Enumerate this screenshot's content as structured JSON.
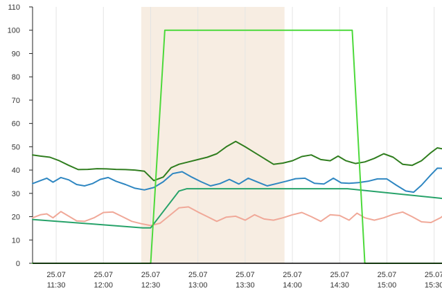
{
  "chart_data": {
    "type": "line",
    "title": "",
    "xlabel": "",
    "ylabel": "",
    "ylim": [
      0,
      110
    ],
    "yticks": [
      0,
      10,
      20,
      30,
      40,
      50,
      60,
      70,
      80,
      90,
      100,
      110
    ],
    "xlim": [
      "11:15",
      "15:35"
    ],
    "xticks": [
      {
        "time": "11:30",
        "date": "25.07"
      },
      {
        "time": "12:00",
        "date": "25.07"
      },
      {
        "time": "12:30",
        "date": "25.07"
      },
      {
        "time": "13:00",
        "date": "25.07"
      },
      {
        "time": "13:30",
        "date": "25.07"
      },
      {
        "time": "14:00",
        "date": "25.07"
      },
      {
        "time": "14:30",
        "date": "25.07"
      },
      {
        "time": "15:00",
        "date": "25.07"
      },
      {
        "time": "15:30",
        "date": "25.07"
      }
    ],
    "grid": "vertical",
    "highlight_band": {
      "start": "12:24",
      "end": "13:55",
      "color": "#f7ede2"
    },
    "series": [
      {
        "color": "#2f7d1e",
        "points": [
          [
            "11:15",
            46.5
          ],
          [
            "11:20",
            46
          ],
          [
            "11:26",
            45.5
          ],
          [
            "11:32",
            44
          ],
          [
            "11:38",
            42
          ],
          [
            "11:44",
            40.2
          ],
          [
            "11:50",
            40.3
          ],
          [
            "11:56",
            40.6
          ],
          [
            "12:02",
            40.5
          ],
          [
            "12:08",
            40.3
          ],
          [
            "12:14",
            40.2
          ],
          [
            "12:20",
            40
          ],
          [
            "12:26",
            39.5
          ],
          [
            "12:32",
            35.5
          ],
          [
            "12:38",
            37
          ],
          [
            "12:43",
            41
          ],
          [
            "12:48",
            42.5
          ],
          [
            "12:54",
            43.5
          ],
          [
            "13:00",
            44.5
          ],
          [
            "13:06",
            45.5
          ],
          [
            "13:12",
            47
          ],
          [
            "13:18",
            50
          ],
          [
            "13:24",
            52.3
          ],
          [
            "13:30",
            50
          ],
          [
            "13:36",
            47.5
          ],
          [
            "13:42",
            45
          ],
          [
            "13:48",
            42.5
          ],
          [
            "13:54",
            43
          ],
          [
            "14:00",
            44
          ],
          [
            "14:06",
            45.8
          ],
          [
            "14:12",
            46.5
          ],
          [
            "14:18",
            44.5
          ],
          [
            "14:24",
            44
          ],
          [
            "14:29",
            46
          ],
          [
            "14:34",
            44
          ],
          [
            "14:40",
            42.8
          ],
          [
            "14:46",
            43.5
          ],
          [
            "14:52",
            45
          ],
          [
            "14:58",
            47
          ],
          [
            "15:04",
            45.5
          ],
          [
            "15:10",
            42.5
          ],
          [
            "15:16",
            42
          ],
          [
            "15:22",
            44
          ],
          [
            "15:28",
            47.5
          ],
          [
            "15:32",
            49.5
          ],
          [
            "15:36",
            49
          ],
          [
            "15:40",
            47.5
          ]
        ]
      },
      {
        "color": "#2e86c1",
        "points": [
          [
            "11:15",
            34.2
          ],
          [
            "11:20",
            35.5
          ],
          [
            "11:24",
            36.5
          ],
          [
            "11:28",
            34.8
          ],
          [
            "11:33",
            36.8
          ],
          [
            "11:38",
            35.8
          ],
          [
            "11:43",
            33.8
          ],
          [
            "11:48",
            33.2
          ],
          [
            "11:53",
            34.2
          ],
          [
            "11:58",
            36
          ],
          [
            "12:03",
            36.8
          ],
          [
            "12:08",
            35.2
          ],
          [
            "12:14",
            33.8
          ],
          [
            "12:20",
            32.2
          ],
          [
            "12:26",
            31.5
          ],
          [
            "12:32",
            32.5
          ],
          [
            "12:38",
            35
          ],
          [
            "12:44",
            38.5
          ],
          [
            "12:50",
            39.3
          ],
          [
            "12:56",
            37
          ],
          [
            "13:02",
            35
          ],
          [
            "13:08",
            33.2
          ],
          [
            "13:14",
            34.2
          ],
          [
            "13:20",
            36
          ],
          [
            "13:26",
            34
          ],
          [
            "13:32",
            36.5
          ],
          [
            "13:38",
            34.8
          ],
          [
            "13:44",
            33.2
          ],
          [
            "13:50",
            34.2
          ],
          [
            "13:56",
            35.2
          ],
          [
            "14:02",
            36.3
          ],
          [
            "14:08",
            36.5
          ],
          [
            "14:14",
            34.3
          ],
          [
            "14:20",
            34
          ],
          [
            "14:26",
            36.5
          ],
          [
            "14:31",
            34.5
          ],
          [
            "14:36",
            34.3
          ],
          [
            "14:42",
            34.6
          ],
          [
            "14:48",
            35.2
          ],
          [
            "14:54",
            36.2
          ],
          [
            "15:00",
            36.2
          ],
          [
            "15:06",
            33.5
          ],
          [
            "15:12",
            31
          ],
          [
            "15:17",
            30.5
          ],
          [
            "15:22",
            33.5
          ],
          [
            "15:28",
            38
          ],
          [
            "15:32",
            40.8
          ],
          [
            "15:36",
            40.7
          ],
          [
            "15:40",
            39
          ]
        ]
      },
      {
        "color": "#f0a898",
        "points": [
          [
            "11:15",
            19.5
          ],
          [
            "11:20",
            20.8
          ],
          [
            "11:24",
            21.2
          ],
          [
            "11:28",
            19.5
          ],
          [
            "11:33",
            22.2
          ],
          [
            "11:38",
            20.2
          ],
          [
            "11:43",
            18.2
          ],
          [
            "11:48",
            18
          ],
          [
            "11:54",
            19.5
          ],
          [
            "12:00",
            21.8
          ],
          [
            "12:06",
            22
          ],
          [
            "12:12",
            20
          ],
          [
            "12:18",
            18
          ],
          [
            "12:24",
            17
          ],
          [
            "12:30",
            16.2
          ],
          [
            "12:36",
            17.2
          ],
          [
            "12:42",
            20.5
          ],
          [
            "12:48",
            23.8
          ],
          [
            "12:54",
            24.2
          ],
          [
            "13:00",
            22
          ],
          [
            "13:06",
            20
          ],
          [
            "13:12",
            18
          ],
          [
            "13:18",
            19.8
          ],
          [
            "13:24",
            20.2
          ],
          [
            "13:30",
            18.5
          ],
          [
            "13:36",
            20.8
          ],
          [
            "13:42",
            19
          ],
          [
            "13:48",
            18.5
          ],
          [
            "13:54",
            19.5
          ],
          [
            "14:00",
            20.8
          ],
          [
            "14:06",
            21.8
          ],
          [
            "14:12",
            20
          ],
          [
            "14:18",
            18
          ],
          [
            "14:24",
            20.8
          ],
          [
            "14:30",
            20.5
          ],
          [
            "14:36",
            18.5
          ],
          [
            "14:41",
            21.5
          ],
          [
            "14:46",
            19.5
          ],
          [
            "14:52",
            18.5
          ],
          [
            "14:58",
            19.5
          ],
          [
            "15:04",
            21
          ],
          [
            "15:10",
            22
          ],
          [
            "15:16",
            20
          ],
          [
            "15:22",
            17.8
          ],
          [
            "15:28",
            17.5
          ],
          [
            "15:34",
            19.5
          ],
          [
            "15:38",
            21.5
          ],
          [
            "15:40",
            23.2
          ]
        ]
      },
      {
        "color": "#26a269",
        "points": [
          [
            "11:15",
            18.8
          ],
          [
            "12:25",
            15.2
          ],
          [
            "12:30",
            15.2
          ],
          [
            "12:48",
            31
          ],
          [
            "12:53",
            32
          ],
          [
            "14:35",
            32
          ],
          [
            "15:40",
            27.5
          ]
        ]
      },
      {
        "color": "#4cd93a",
        "points": [
          [
            "11:15",
            0
          ],
          [
            "12:30",
            0
          ],
          [
            "12:39",
            100
          ],
          [
            "14:38",
            100
          ],
          [
            "14:46",
            0
          ],
          [
            "15:40",
            0
          ]
        ]
      }
    ]
  }
}
